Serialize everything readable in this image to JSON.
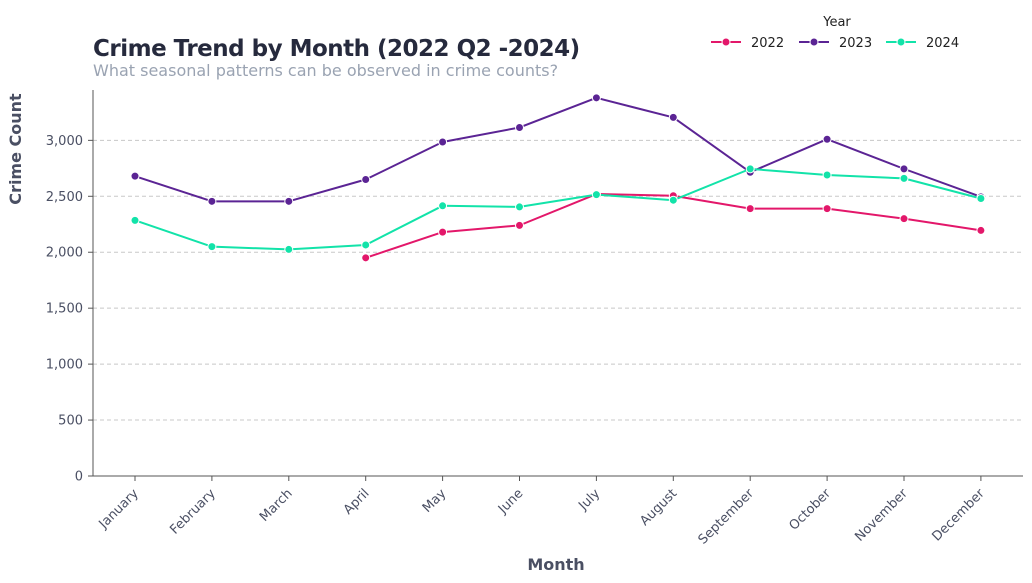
{
  "chart_data": {
    "type": "line",
    "title": "Crime Trend by Month (2022 Q2 -2024)",
    "subtitle": "What seasonal patterns can be observed in crime counts?",
    "xlabel": "Month",
    "ylabel": "Crime Count",
    "categories": [
      "January",
      "February",
      "March",
      "April",
      "May",
      "June",
      "July",
      "August",
      "September",
      "October",
      "November",
      "December"
    ],
    "ylim": [
      0,
      3450
    ],
    "yticks": [
      0,
      500,
      1000,
      1500,
      2000,
      2500,
      3000
    ],
    "ytick_labels": [
      "0",
      "500",
      "1,000",
      "1,500",
      "2,000",
      "2,500",
      "3,000"
    ],
    "grid": "horizontal dashed",
    "legend": {
      "title": "Year",
      "placement": "top-right"
    },
    "series": [
      {
        "name": "2022",
        "color": "#e3176a",
        "values": [
          null,
          null,
          null,
          1950,
          2180,
          2240,
          2520,
          2505,
          2390,
          2390,
          2300,
          2195
        ]
      },
      {
        "name": "2023",
        "color": "#5b2494",
        "values": [
          2680,
          2455,
          2455,
          2650,
          2985,
          3115,
          3380,
          3205,
          2715,
          3010,
          2745,
          2495
        ]
      },
      {
        "name": "2024",
        "color": "#12e3a9",
        "values": [
          2285,
          2050,
          2025,
          2065,
          2415,
          2405,
          2515,
          2465,
          2745,
          2690,
          2660,
          2480
        ]
      }
    ]
  }
}
